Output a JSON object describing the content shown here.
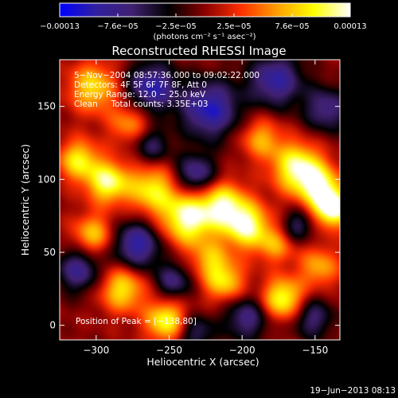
{
  "chart_data": {
    "type": "heatmap",
    "title": "Reconstructed RHESSI Image",
    "xlabel": "Heliocentric X (arcsec)",
    "ylabel": "Heliocentric Y (arcsec)",
    "xlim": [
      -325,
      -133
    ],
    "ylim": [
      -10,
      182
    ],
    "x_ticks": [
      -300,
      -250,
      -200,
      -150
    ],
    "y_ticks": [
      0,
      50,
      100,
      150
    ],
    "x_tick_labels": [
      "−300",
      "−250",
      "−200",
      "−150"
    ],
    "y_tick_labels": [
      "0",
      "50",
      "100",
      "150"
    ],
    "colorbar": {
      "range": [
        -0.00013,
        0.00013
      ],
      "tick_labels": [
        "−0.00013",
        "−7.6e−05",
        "−2.5e−05",
        "2.5e−05",
        "7.6e−05",
        "0.00013"
      ],
      "units_label": "(photons cm⁻² s⁻¹ asec⁻²)",
      "colors": [
        "#0000ff",
        "#3020a0",
        "#402070",
        "#000000",
        "#8a0000",
        "#ff3000",
        "#ffa000",
        "#ffff00",
        "#ffffff"
      ]
    },
    "info_lines": [
      "5−Nov−2004 08:57:36.000 to 09:02:22.000",
      "Detectors: 4F 5F 6F 7F 8F, Att 0",
      "Energy Range: 12.0 − 25.0 keV",
      "Clean     Total counts: 3.35E+03"
    ],
    "peak_label": "Position of Peak = [−138,80]",
    "peak_position": [
      -138,
      80
    ],
    "footer_date": "19−Jun−2013 08:13",
    "blobs": [
      {
        "x": -237,
        "y": 73,
        "v": 1.0,
        "s": 13
      },
      {
        "x": -262,
        "y": 93,
        "v": 0.75,
        "s": 12
      },
      {
        "x": -213,
        "y": 83,
        "v": 0.8,
        "s": 11
      },
      {
        "x": -197,
        "y": 68,
        "v": 0.95,
        "s": 11
      },
      {
        "x": -162,
        "y": 108,
        "v": 0.95,
        "s": 12
      },
      {
        "x": -138,
        "y": 80,
        "v": 1.1,
        "s": 9
      },
      {
        "x": -147,
        "y": 95,
        "v": 0.8,
        "s": 10
      },
      {
        "x": -292,
        "y": 98,
        "v": 0.9,
        "s": 10
      },
      {
        "x": -312,
        "y": 113,
        "v": 0.75,
        "s": 10
      },
      {
        "x": -302,
        "y": 62,
        "v": 0.65,
        "s": 10
      },
      {
        "x": -282,
        "y": 25,
        "v": 0.75,
        "s": 11
      },
      {
        "x": -252,
        "y": 3,
        "v": 0.85,
        "s": 10
      },
      {
        "x": -212,
        "y": 30,
        "v": 0.7,
        "s": 10
      },
      {
        "x": -172,
        "y": 18,
        "v": 0.9,
        "s": 10
      },
      {
        "x": -147,
        "y": 40,
        "v": 0.55,
        "s": 10
      },
      {
        "x": -302,
        "y": 163,
        "v": 0.7,
        "s": 12
      },
      {
        "x": -277,
        "y": 138,
        "v": 0.5,
        "s": 10
      },
      {
        "x": -187,
        "y": 128,
        "v": 0.55,
        "s": 10
      },
      {
        "x": -222,
        "y": 45,
        "v": 0.5,
        "s": 9
      },
      {
        "x": -177,
        "y": 55,
        "v": 0.5,
        "s": 9
      },
      {
        "x": -232,
        "y": 103,
        "v": -0.7,
        "s": 10
      },
      {
        "x": -222,
        "y": 148,
        "v": -0.85,
        "s": 14
      },
      {
        "x": -262,
        "y": 163,
        "v": -0.8,
        "s": 12
      },
      {
        "x": -177,
        "y": 168,
        "v": -0.75,
        "s": 13
      },
      {
        "x": -142,
        "y": 148,
        "v": -0.6,
        "s": 11
      },
      {
        "x": -312,
        "y": 38,
        "v": -0.65,
        "s": 11
      },
      {
        "x": -272,
        "y": 55,
        "v": -0.8,
        "s": 12
      },
      {
        "x": -247,
        "y": 30,
        "v": -0.55,
        "s": 9
      },
      {
        "x": -197,
        "y": 5,
        "v": -0.6,
        "s": 11
      },
      {
        "x": -152,
        "y": 5,
        "v": -0.55,
        "s": 10
      },
      {
        "x": -232,
        "y": -5,
        "v": -0.5,
        "s": 9
      },
      {
        "x": -162,
        "y": 68,
        "v": -0.5,
        "s": 8
      },
      {
        "x": -262,
        "y": 123,
        "v": -0.5,
        "s": 9
      }
    ]
  }
}
